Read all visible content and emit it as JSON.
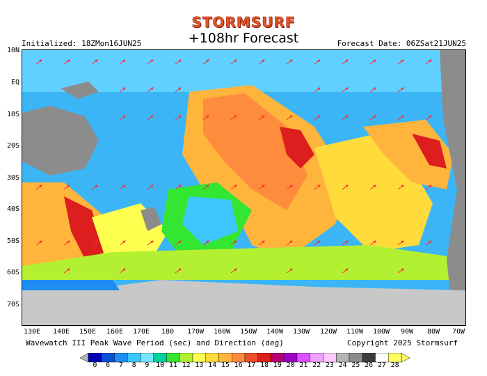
{
  "header": {
    "brand": "STORMSURF",
    "title": "+108hr Forecast",
    "initialized": "Initialized: 18ZMon16JUN25",
    "forecast_date": "Forecast Date: 06ZSat21JUN25"
  },
  "map": {
    "lat_labels": [
      "10N",
      "EQ",
      "10S",
      "20S",
      "30S",
      "40S",
      "50S",
      "60S",
      "70S"
    ],
    "lon_labels": [
      "130E",
      "140E",
      "150E",
      "160E",
      "170E",
      "180",
      "170W",
      "160W",
      "150W",
      "140W",
      "130W",
      "120W",
      "110W",
      "100W",
      "90W",
      "80W",
      "70W"
    ],
    "colors": {
      "ocean_base": "#3bb5f5",
      "land": "#8c8c8c",
      "ice": "#c8c8c8",
      "arrow": "#ff2d2d"
    }
  },
  "footer": {
    "description": "Wavewatch III Peak Wave Period (sec) and Direction (deg)",
    "copyright": "Copyright 2025 Stormsurf"
  },
  "colorbar": {
    "labels": [
      "0",
      "6",
      "7",
      "8",
      "9",
      "10",
      "11",
      "12",
      "13",
      "14",
      "15",
      "16",
      "17",
      "18",
      "19",
      "20",
      "21",
      "22",
      "23",
      "24",
      "25",
      "26",
      "27",
      "28"
    ],
    "colors": [
      "#0000b4",
      "#0a50d2",
      "#1e8cf0",
      "#3cc8ff",
      "#78e6ff",
      "#00d2a0",
      "#32e632",
      "#b4f032",
      "#ffff50",
      "#ffdc3c",
      "#ffb43c",
      "#ff8c3c",
      "#f05028",
      "#dc1e1e",
      "#b4006e",
      "#a000c8",
      "#dc50ff",
      "#f0a0ff",
      "#ffc8ff",
      "#b4b4b4",
      "#8c8c8c",
      "#3c3c3c",
      "#ffffff",
      "#ffff64"
    ]
  }
}
